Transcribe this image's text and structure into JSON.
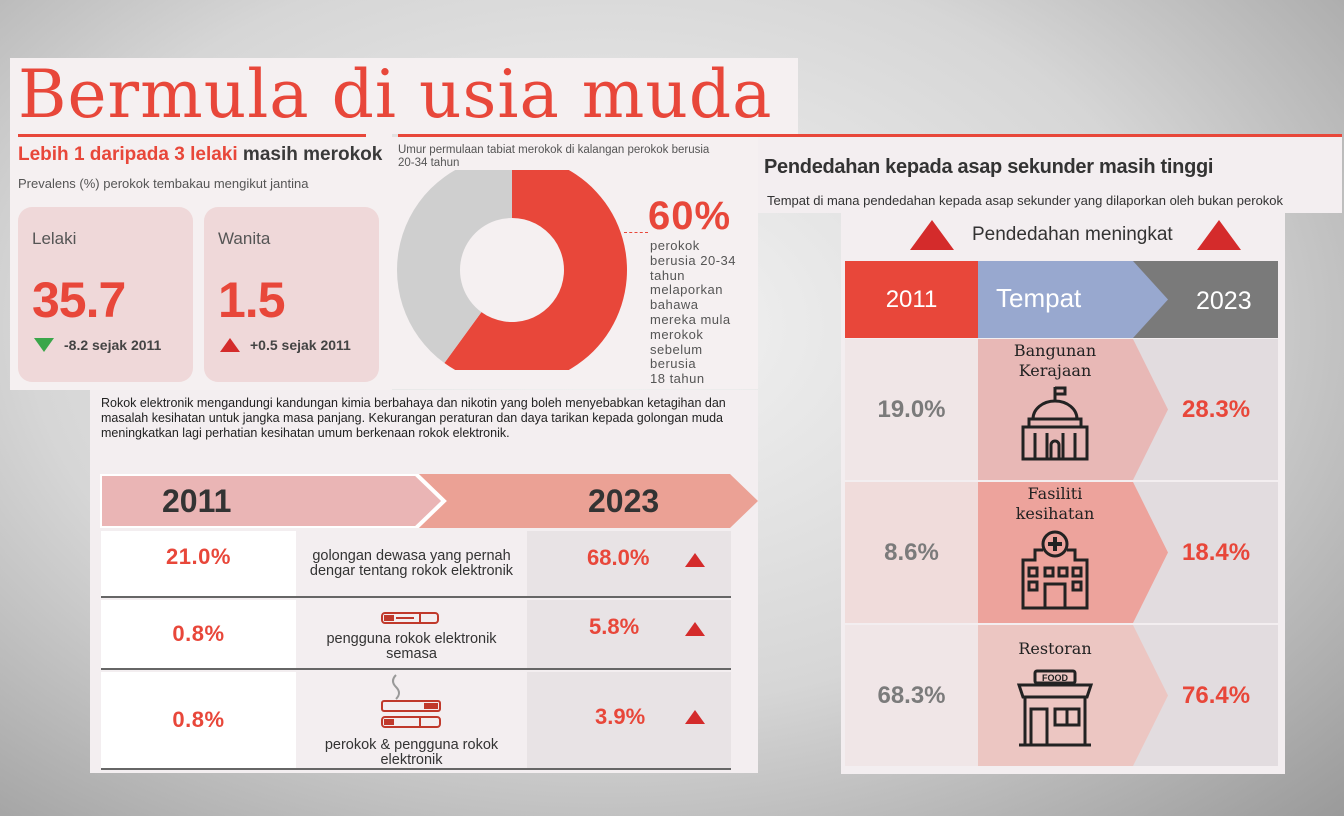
{
  "left": {
    "headline": "Bermula di usia muda",
    "subhead_red": "Lebih 1 daripada 3 lelaki",
    "subhead_dark": " masih merokok",
    "prevalence_caption": "Prevalens (%) perokok tembakau mengikut jantina",
    "cards": [
      {
        "label": "Lelaki",
        "value": "35.7",
        "change": "-8.2 sejak 2011",
        "direction": "down"
      },
      {
        "label": "Wanita",
        "value": "1.5",
        "change": "+0.5 sejak 2011",
        "direction": "up"
      }
    ]
  },
  "donut": {
    "caption": "Umur permulaan tabiat merokok di kalangan perokok berusia 20-34 tahun",
    "percent_label": "60%",
    "note_lines": [
      "perokok",
      "berusia 20-34",
      "tahun",
      "melaporkan",
      "bahawa",
      "mereka mula",
      "merokok",
      "sebelum",
      "berusia",
      "18 tahun"
    ]
  },
  "ecig": {
    "paragraph": "Rokok elektronik mengandungi kandungan kimia berbahaya dan nikotin yang boleh menyebabkan ketagihan dan masalah kesihatan untuk jangka masa panjang. Kekurangan peraturan dan daya tarikan kepada golongan muda meningkatkan lagi perhatian kesihatan umum berkenaan rokok elektronik.",
    "year_left": "2011",
    "year_right": "2023",
    "rows": [
      {
        "v2011": "21.0%",
        "label": "golongan dewasa yang pernah dengar tentang rokok elektronik",
        "v2023": "68.0%",
        "icon": "none"
      },
      {
        "v2011": "0.8%",
        "label": "pengguna rokok elektronik semasa",
        "v2023": "5.8%",
        "icon": "ecigarette-icon"
      },
      {
        "v2011": "0.8%",
        "label": "perokok & pengguna rokok elektronik",
        "v2023": "3.9%",
        "icon": "cigarette-ecigarette-icon"
      }
    ]
  },
  "secondhand": {
    "title": "Pendedahan kepada asap sekunder masih tinggi",
    "subtitle": "Tempat di mana pendedahan kepada asap sekunder yang dilaporkan oleh bukan perokok",
    "legend": "Pendedahan meningkat",
    "col_2011": "2011",
    "col_place": "Tempat",
    "col_2023": "2023",
    "rows": [
      {
        "v2011": "19.0%",
        "place": "Bangunan Kerajaan",
        "v2023": "28.3%",
        "icon": "government-building-icon"
      },
      {
        "v2011": "8.6%",
        "place": "Fasiliti kesihatan",
        "v2023": "18.4%",
        "icon": "hospital-icon"
      },
      {
        "v2011": "68.3%",
        "place": "Restoran",
        "v2023": "76.4%",
        "icon": "restaurant-icon",
        "icon_text": "FOOD"
      }
    ]
  },
  "chart_data": [
    {
      "type": "bar",
      "title": "",
      "categories": [
        "Lelaki",
        "Wanita"
      ],
      "values": [
        35.7,
        1.5
      ],
      "changes_since_2011": [
        -8.2,
        0.5
      ]
    },
    {
      "type": "pie",
      "title": "Umur permulaan tabiat merokok di kalangan perokok berusia 20-34 tahun",
      "slices": [
        {
          "label": "sebelum berusia 18 tahun",
          "value": 60
        },
        {
          "label": "",
          "value": 40
        }
      ]
    },
    {
      "type": "table",
      "columns": [
        "2011",
        "",
        "2023"
      ],
      "categories": [
        "golongan dewasa yang pernah dengar tentang rokok elektronik",
        "pengguna rokok elektronik semasa",
        "perokok & pengguna rokok elektronik"
      ],
      "series": [
        {
          "name": "2011",
          "values": [
            21.0,
            0.8,
            0.8
          ]
        },
        {
          "name": "2023",
          "values": [
            68.0,
            5.8,
            3.9
          ]
        }
      ]
    },
    {
      "type": "table",
      "columns": [
        "2011",
        "Tempat",
        "2023"
      ],
      "categories": [
        "Bangunan Kerajaan",
        "Fasiliti kesihatan",
        "Restoran"
      ],
      "series": [
        {
          "name": "2011",
          "values": [
            19.0,
            8.6,
            68.3
          ]
        },
        {
          "name": "2023",
          "values": [
            28.3,
            18.4,
            76.4
          ]
        }
      ]
    }
  ],
  "colors": {
    "accent": "#e8473a",
    "pink": "#efd8d9",
    "grey_slice": "#cfcfcf",
    "blue_header": "#98a8cf",
    "dark_grey_header": "#7a7a7a"
  }
}
